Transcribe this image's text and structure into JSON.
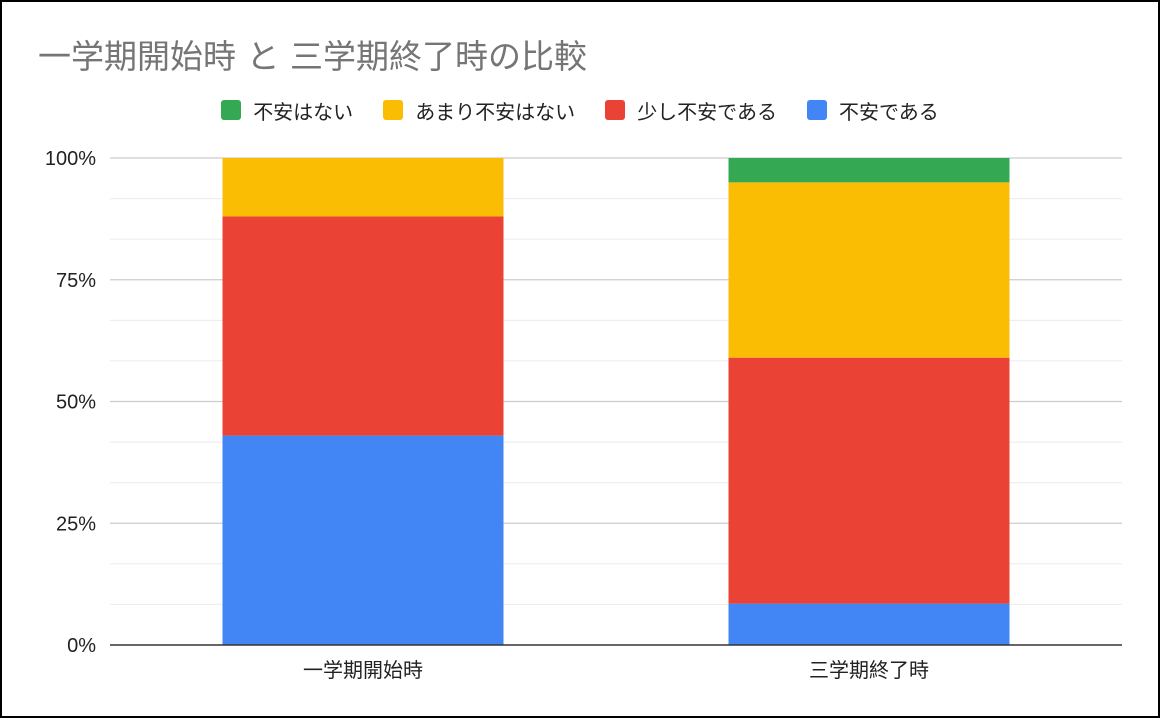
{
  "chart_data": {
    "type": "bar",
    "stacked": true,
    "title": "一学期開始時 と 三学期終了時の比較",
    "categories": [
      "一学期開始時",
      "三学期終了時"
    ],
    "series": [
      {
        "name": "不安である",
        "color": "#4285f4",
        "values": [
          43,
          8.5
        ]
      },
      {
        "name": "少し不安である",
        "color": "#ea4335",
        "values": [
          45,
          50.5
        ]
      },
      {
        "name": "あまり不安はない",
        "color": "#fbbc04",
        "values": [
          12,
          36
        ]
      },
      {
        "name": "不安はない",
        "color": "#34a853",
        "values": [
          0,
          5
        ]
      }
    ],
    "legend_order": [
      "不安はない",
      "あまり不安はない",
      "少し不安である",
      "不安である"
    ],
    "legend_position": "top",
    "yticks": [
      "0%",
      "25%",
      "50%",
      "75%",
      "100%"
    ],
    "ylim": [
      0,
      100
    ],
    "grid": true
  }
}
